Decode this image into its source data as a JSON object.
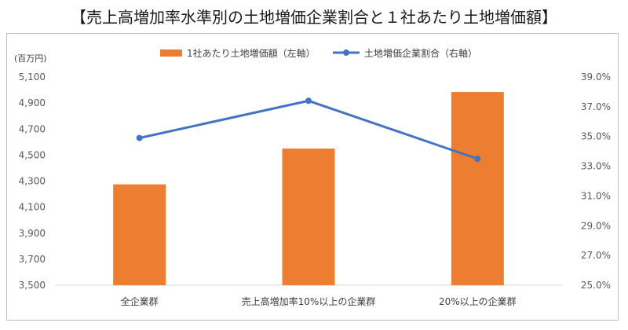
{
  "title": "【売上高増加率水準別の土地増価企業割合と１社あたり土地増価額】",
  "chart_data": {
    "type": "bar",
    "unit_label": "(百万円)",
    "categories": [
      "全企業群",
      "売上高増加率10%以上の企業群",
      "20%以上の企業群"
    ],
    "series": [
      {
        "name": "1社あたり土地増価額（左軸）",
        "kind": "bar",
        "axis": "left",
        "values": [
          4275,
          4550,
          4985
        ],
        "color": "#ed7d31"
      },
      {
        "name": "土地増価企業割合（右軸）",
        "kind": "line",
        "axis": "right",
        "values": [
          34.9,
          37.4,
          33.5
        ],
        "color": "#4472c4"
      }
    ],
    "left_axis": {
      "ylim": [
        3500,
        5100
      ],
      "ticks": [
        "3,500",
        "3,700",
        "3,900",
        "4,100",
        "4,300",
        "4,500",
        "4,700",
        "4,900",
        "5,100"
      ]
    },
    "right_axis": {
      "ylim": [
        25.0,
        39.0
      ],
      "ticks": [
        "25.0%",
        "27.0%",
        "29.0%",
        "31.0%",
        "33.0%",
        "35.0%",
        "37.0%",
        "39.0%"
      ]
    },
    "grid": false,
    "legend_position": "top"
  }
}
